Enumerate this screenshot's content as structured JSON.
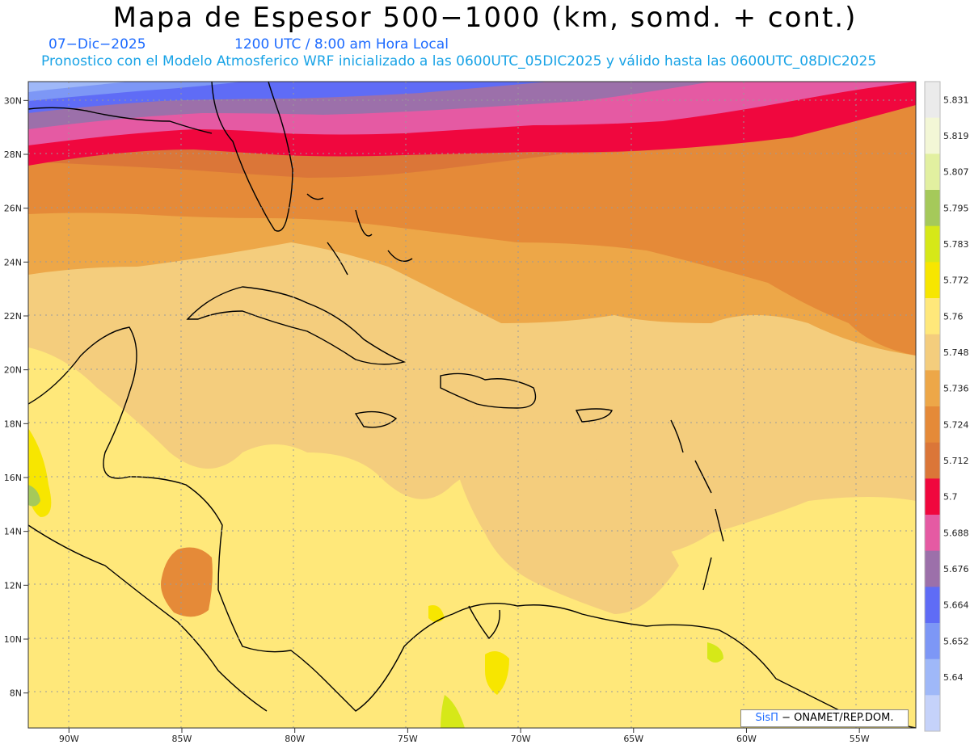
{
  "header": {
    "title": "Mapa de Espesor 500−1000 (km, somd. + cont.)",
    "date": "07−Dic−2025",
    "time": "1200 UTC / 8:00 am Hora Local",
    "forecast": "Pronostico con el Modelo Atmosferico WRF inicializado a las 0600UTC_05DIC2025 y válido hasta las  0600UTC_08DIC2025"
  },
  "map": {
    "lat_labels": [
      "30N",
      "28N",
      "26N",
      "24N",
      "22N",
      "20N",
      "18N",
      "16N",
      "14N",
      "12N",
      "10N",
      "8N"
    ],
    "lon_labels": [
      "90W",
      "85W",
      "80W",
      "75W",
      "70W",
      "65W",
      "60W",
      "55W"
    ],
    "lat_values": [
      30,
      28,
      26,
      24,
      22,
      20,
      18,
      16,
      14,
      12,
      10,
      8
    ],
    "lon_values": [
      -90,
      -85,
      -80,
      -75,
      -70,
      -65,
      -60,
      -55
    ],
    "extent": {
      "lon_min": -91.8,
      "lon_max": -52.5,
      "lat_min": 6.7,
      "lat_max": 30.7
    }
  },
  "colorbar": {
    "labels": [
      "5.831",
      "5.819",
      "5.807",
      "5.795",
      "5.783",
      "5.772",
      "5.76",
      "5.748",
      "5.736",
      "5.724",
      "5.712",
      "5.7",
      "5.688",
      "5.676",
      "5.664",
      "5.652",
      "5.64"
    ],
    "colors": [
      "#ebebeb",
      "#f3f7d6",
      "#e2f0a0",
      "#a5c95a",
      "#d6e818",
      "#f7e600",
      "#ffe87a",
      "#f4cd7d",
      "#eda748",
      "#e58a38",
      "#db7638",
      "#f0073e",
      "#e55aa3",
      "#9c70aa",
      "#5f6cf6",
      "#7d97f6",
      "#9fb8f8",
      "#c5d2fa"
    ]
  },
  "credit": {
    "logo": "SisΠ",
    "text": "− ONAMET/REP.DOM."
  }
}
